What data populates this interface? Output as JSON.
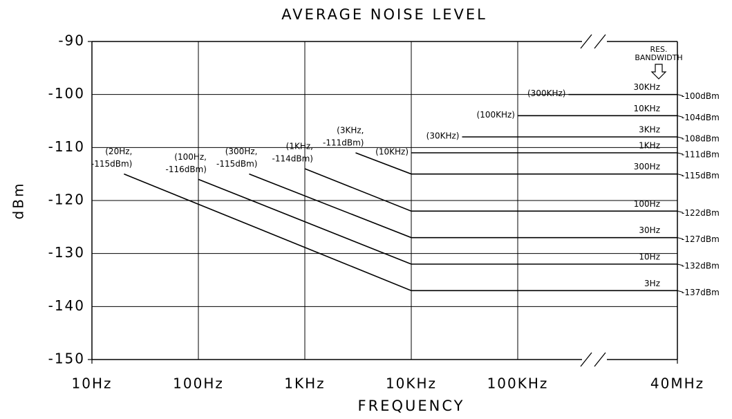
{
  "chart_data": {
    "type": "line",
    "title": "AVERAGE NOISE LEVEL",
    "xlabel": "FREQUENCY",
    "ylabel": "dBm",
    "annotation": [
      "RES.",
      "BANDWIDTH"
    ],
    "xscale": "log",
    "axis_break": true,
    "grid": true,
    "color": "#000000",
    "xlim": [
      10,
      40000000
    ],
    "ylim": [
      -150,
      -90
    ],
    "xticks": [
      {
        "value": 10,
        "label": "10Hz"
      },
      {
        "value": 100,
        "label": "100Hz"
      },
      {
        "value": 1000,
        "label": "1KHz"
      },
      {
        "value": 10000,
        "label": "10KHz"
      },
      {
        "value": 100000,
        "label": "100KHz"
      },
      {
        "value": 40000000,
        "label": "40MHz"
      }
    ],
    "yticks": [
      -150,
      -140,
      -130,
      -120,
      -110,
      -100,
      -90
    ],
    "series": [
      {
        "name": "30KHz",
        "x": [
          300000,
          40000000
        ],
        "values": [
          -100,
          -100
        ],
        "start_label": [
          "(300KHz)"
        ],
        "end_label": "-100dBm"
      },
      {
        "name": "10KHz",
        "x": [
          100000,
          40000000
        ],
        "values": [
          -104,
          -104
        ],
        "start_label": [
          "(100KHz)"
        ],
        "end_label": "-104dBm"
      },
      {
        "name": "3KHz",
        "x": [
          30000,
          40000000
        ],
        "values": [
          -108,
          -108
        ],
        "start_label": [
          "(30KHz)"
        ],
        "end_label": "-108dBm"
      },
      {
        "name": "1KHz",
        "x": [
          10000,
          40000000
        ],
        "values": [
          -111,
          -111
        ],
        "start_label": [
          "(10KHz)"
        ],
        "end_label": "-111dBm"
      },
      {
        "name": "300Hz",
        "x": [
          3000,
          10000,
          40000000
        ],
        "values": [
          -111,
          -115,
          -115
        ],
        "start_label": [
          "(3KHz,",
          "-111dBm)"
        ],
        "end_label": "-115dBm"
      },
      {
        "name": "100Hz",
        "x": [
          1000,
          10000,
          40000000
        ],
        "values": [
          -114,
          -122,
          -122
        ],
        "start_label": [
          "(1KHz,",
          "-114dBm)"
        ],
        "end_label": "-122dBm"
      },
      {
        "name": "30Hz",
        "x": [
          300,
          10000,
          40000000
        ],
        "values": [
          -115,
          -127,
          -127
        ],
        "start_label": [
          "(300Hz,",
          "-115dBm)"
        ],
        "end_label": "-127dBm"
      },
      {
        "name": "10Hz",
        "x": [
          100,
          10000,
          40000000
        ],
        "values": [
          -116,
          -132,
          -132
        ],
        "start_label": [
          "(100Hz,",
          "-116dBm)"
        ],
        "end_label": "-132dBm"
      },
      {
        "name": "3Hz",
        "x": [
          20,
          10000,
          40000000
        ],
        "values": [
          -115,
          -137,
          -137
        ],
        "start_label": [
          "(20Hz,",
          "-115dBm)"
        ],
        "end_label": "-137dBm"
      }
    ]
  }
}
